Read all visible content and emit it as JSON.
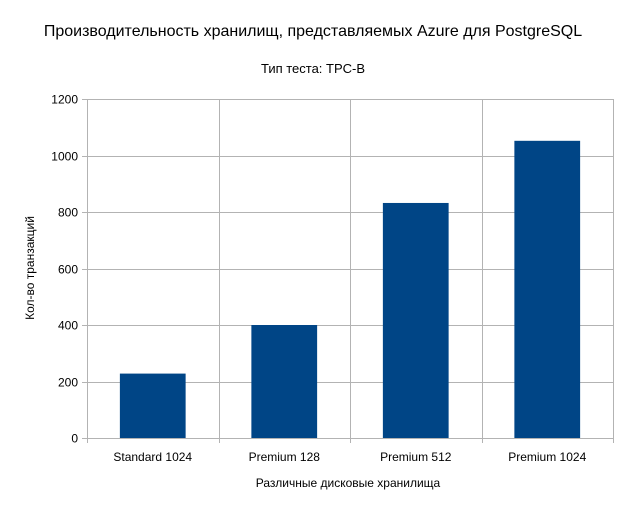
{
  "chart_data": {
    "type": "bar",
    "title": "Производительность хранилищ, представляемых Azure для PostgreSQL",
    "subtitle": "Тип теста: TPC-B",
    "xlabel": "Различные дисковые хранилища",
    "ylabel": "Кол-во транзакций",
    "categories": [
      "Standard 1024",
      "Premium 128",
      "Premium 512",
      "Premium 1024"
    ],
    "values": [
      228,
      400,
      832,
      1052
    ],
    "ylim": [
      0,
      1200
    ],
    "yticks": [
      0,
      200,
      400,
      600,
      800,
      1000,
      1200
    ],
    "grid": true,
    "legend": "none",
    "bar_color": "#004586",
    "grid_color": "#b3b3b3"
  }
}
